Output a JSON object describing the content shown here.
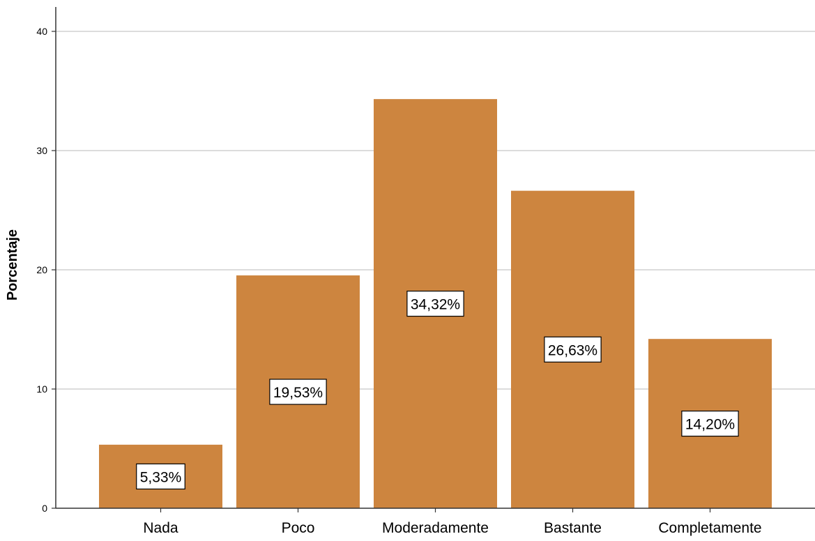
{
  "chart_data": {
    "type": "bar",
    "categories": [
      "Nada",
      "Poco",
      "Moderadamente",
      "Bastante",
      "Completamente"
    ],
    "values": [
      5.33,
      19.53,
      34.32,
      26.63,
      14.2
    ],
    "data_labels": [
      "5,33%",
      "19,53%",
      "34,32%",
      "26,63%",
      "14,20%"
    ],
    "ylabel": "Porcentaje",
    "xlabel": "",
    "ylim": [
      0,
      42
    ],
    "yticks": [
      0,
      10,
      20,
      30,
      40
    ],
    "grid": true,
    "bar_color": "#cd853f",
    "label_box_fill": "#ffffff",
    "label_box_stroke": "#000000"
  }
}
